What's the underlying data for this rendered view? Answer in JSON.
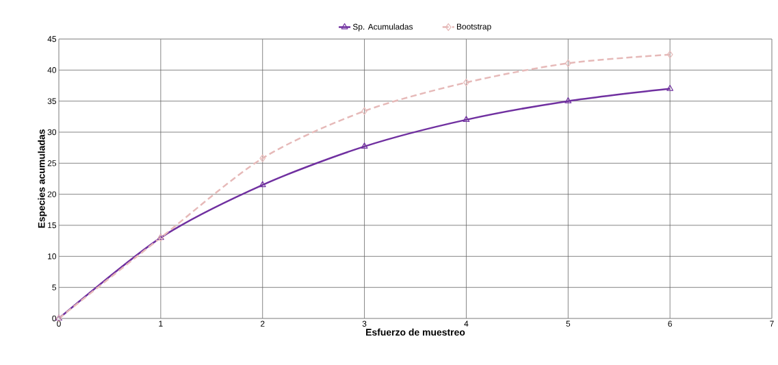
{
  "chart_data": {
    "type": "line",
    "xlabel": "Esfuerzo de muestreo",
    "ylabel": "Especies acumuladas",
    "x": [
      0,
      1,
      2,
      3,
      4,
      5,
      6
    ],
    "series": [
      {
        "name": "Sp. Acumuladas",
        "color": "#7030a0",
        "values": [
          0,
          13,
          21.5,
          27.7,
          32,
          35,
          37
        ],
        "marker": "triangle",
        "line_style": "solid"
      },
      {
        "name": "Bootstrap",
        "color": "#e6b9b8",
        "values": [
          0,
          13,
          25.8,
          33.4,
          38,
          41.1,
          42.5
        ],
        "marker": "diamond",
        "line_style": "dashed"
      }
    ],
    "xlim": [
      0,
      7
    ],
    "xticks": [
      0,
      1,
      2,
      3,
      4,
      5,
      6,
      7
    ],
    "ylim": [
      0,
      45
    ],
    "yticks": [
      0,
      5,
      10,
      15,
      20,
      25,
      30,
      35,
      40,
      45
    ],
    "grid": true,
    "legend": "top"
  }
}
